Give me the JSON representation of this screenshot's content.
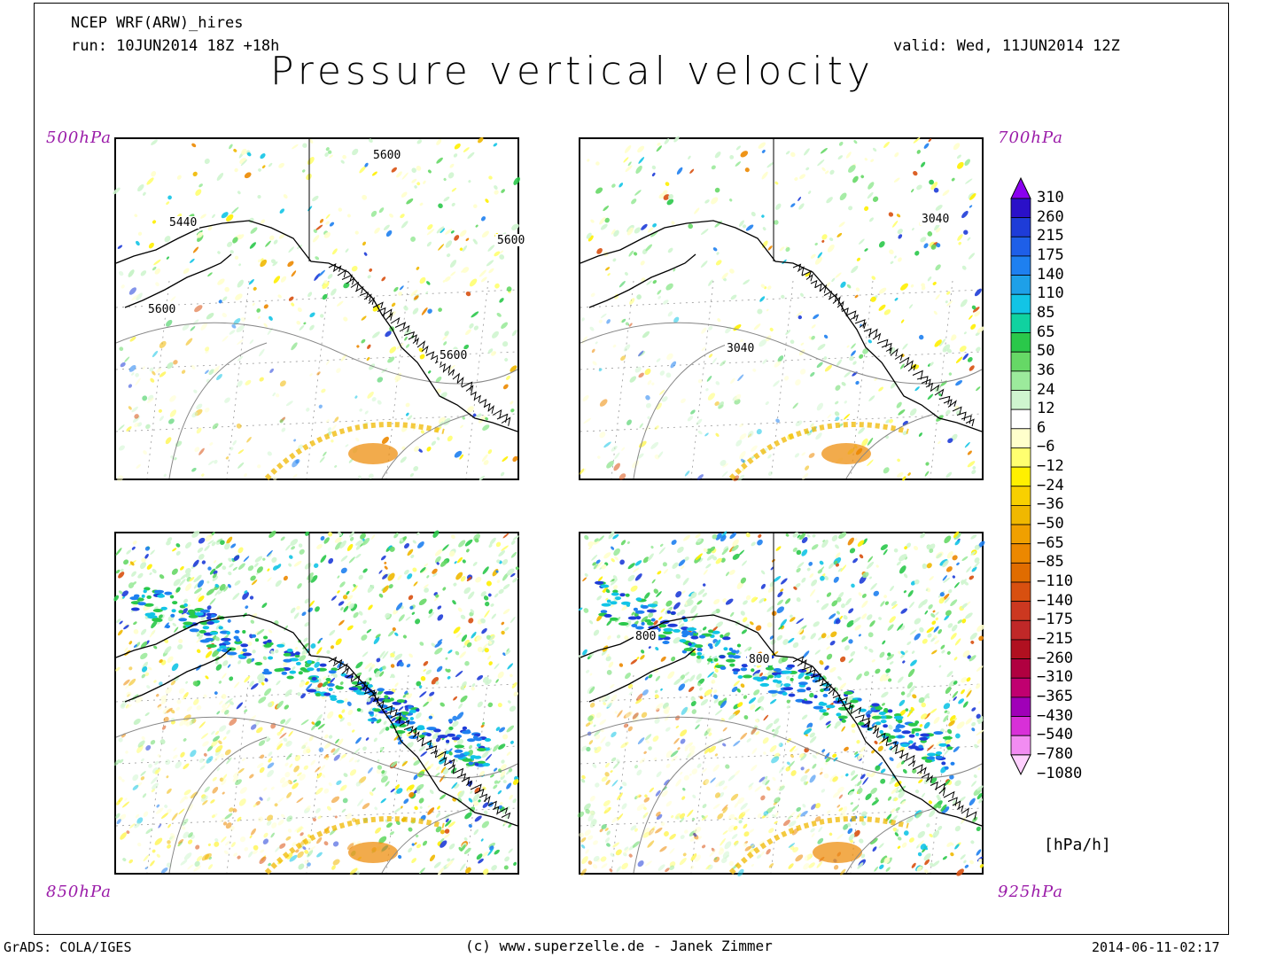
{
  "header": {
    "model": "NCEP WRF(ARW)_hires",
    "run": "run: 10JUN2014 18Z +18h",
    "valid": "valid: Wed, 11JUN2014 12Z",
    "title": "Pressure vertical velocity"
  },
  "panels": [
    {
      "level": "500hPa",
      "contours": [
        "5600",
        "5440",
        "5600",
        "5600",
        "5600"
      ],
      "accent": "#f2b500"
    },
    {
      "level": "700hPa",
      "contours": [
        "3040",
        "3040"
      ],
      "accent": "#f2b500"
    },
    {
      "level": "850hPa",
      "contours": [],
      "accent": "#1e9fe0"
    },
    {
      "level": "925hPa",
      "contours": [
        "800",
        "800"
      ],
      "accent": "#1e9fe0"
    }
  ],
  "colorbar": {
    "labels": [
      "310",
      "260",
      "215",
      "175",
      "140",
      "110",
      "85",
      "65",
      "50",
      "36",
      "24",
      "12",
      "6",
      "−6",
      "−12",
      "−24",
      "−36",
      "−50",
      "−65",
      "−85",
      "−110",
      "−140",
      "−175",
      "−215",
      "−260",
      "−310",
      "−365",
      "−430",
      "−540",
      "−780",
      "−1080"
    ],
    "colors": [
      "#8a00f0",
      "#2a10c8",
      "#1e3cd8",
      "#1e5fe8",
      "#1e80f0",
      "#1ea0e8",
      "#12c4e6",
      "#10d2a0",
      "#2ac84a",
      "#66d866",
      "#9cea9c",
      "#cff5cf",
      "#ffffff",
      "#ffffcc",
      "#ffff70",
      "#fff000",
      "#f8d000",
      "#f0b800",
      "#f0a000",
      "#ec8800",
      "#e06c00",
      "#d85010",
      "#cc3820",
      "#c02828",
      "#b01020",
      "#b00040",
      "#c00070",
      "#a000b8",
      "#d830d8",
      "#f28cf2",
      "#ffd0ff"
    ],
    "units": "[hPa/h]"
  },
  "footer": {
    "grads": "GrADS: COLA/IGES",
    "copyright": "(c) www.superzelle.de - Janek Zimmer",
    "timestamp": "2014-06-11-02:17"
  }
}
